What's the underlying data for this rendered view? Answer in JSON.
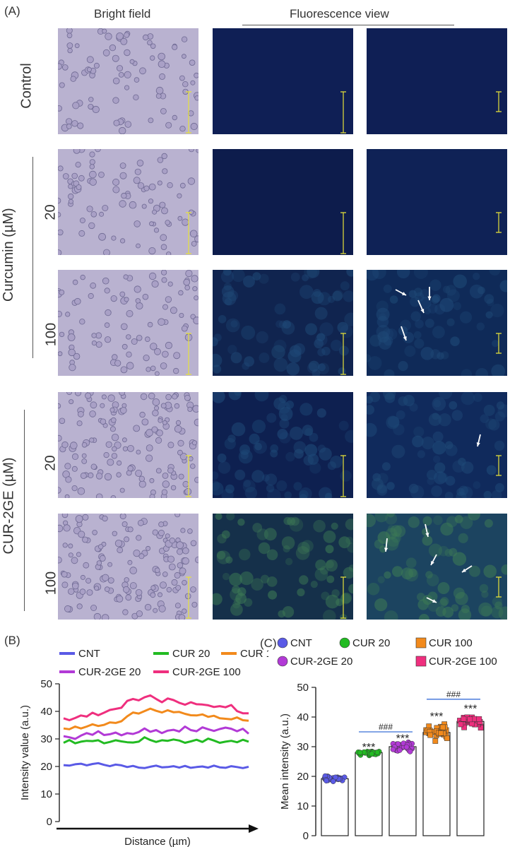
{
  "panel_a": {
    "label": "(A)",
    "col_headers": {
      "bright": "Bright field",
      "fluor": "Fluorescence view"
    },
    "row_labels": {
      "control": "Control",
      "curcumin": "Curcumin (µM)",
      "cur2ge": "CUR-2GE (µM)"
    },
    "doses": [
      "20",
      "100",
      "20",
      "100"
    ]
  },
  "panel_b": {
    "label": "(B)"
  },
  "panel_c": {
    "label": "(C)"
  },
  "chart_data": [
    {
      "type": "line",
      "ylabel": "Intensity value (a.u.)",
      "xlabel": "Distance (µm)",
      "ylim": [
        0,
        50
      ],
      "yticks": [
        0,
        10,
        20,
        30,
        40,
        50
      ],
      "legend": [
        "CNT",
        "CUR 20",
        "CUR 100",
        "CUR-2GE 20",
        "CUR-2GE 100"
      ],
      "series": [
        {
          "name": "CNT",
          "color": "#5a5ae6",
          "values": [
            20.5,
            20.3,
            20.8,
            21.0,
            20.4,
            20.9,
            21.2,
            20.6,
            20.1,
            20.7,
            20.4,
            19.8,
            20.2,
            19.6,
            19.4,
            19.9,
            20.3,
            19.7,
            19.8,
            20.1,
            19.6,
            20.2,
            19.5,
            19.8,
            20.0,
            19.6,
            20.3,
            19.7,
            19.5,
            20.1,
            19.8,
            19.4,
            19.9
          ]
        },
        {
          "name": "CUR 20",
          "color": "#22bb22",
          "values": [
            28.6,
            29.6,
            28.4,
            29.0,
            29.3,
            29.2,
            29.5,
            28.4,
            28.9,
            29.5,
            29.1,
            28.8,
            28.7,
            29.0,
            30.6,
            29.6,
            28.9,
            29.5,
            29.3,
            29.8,
            29.4,
            28.6,
            29.1,
            29.7,
            28.9,
            30.1,
            29.4,
            28.6,
            29.0,
            29.3,
            28.8,
            29.7,
            29.0
          ]
        },
        {
          "name": "CUR 100",
          "color": "#f28a1c",
          "values": [
            33.8,
            33.5,
            34.5,
            33.8,
            34.5,
            35.3,
            34.7,
            35.1,
            36.0,
            35.8,
            36.4,
            38.2,
            39.6,
            39.2,
            40.1,
            41.0,
            40.2,
            39.6,
            40.4,
            39.7,
            39.8,
            39.1,
            38.6,
            38.5,
            38.9,
            38.0,
            38.4,
            37.5,
            37.3,
            37.1,
            37.8,
            36.8,
            36.6
          ]
        },
        {
          "name": "CUR-2GE 20",
          "color": "#b23ad6",
          "values": [
            31.0,
            30.6,
            30.0,
            31.2,
            32.1,
            31.5,
            32.8,
            31.4,
            31.7,
            32.3,
            31.3,
            32.1,
            31.8,
            32.5,
            33.8,
            32.6,
            33.2,
            32.1,
            33.0,
            33.3,
            32.7,
            34.5,
            33.2,
            32.8,
            34.2,
            33.5,
            32.9,
            33.6,
            34.1,
            33.7,
            32.8,
            33.7,
            31.9
          ]
        },
        {
          "name": "CUR-2GE 100",
          "color": "#ef2f7e",
          "values": [
            37.5,
            36.8,
            37.6,
            38.5,
            38.1,
            39.5,
            38.6,
            39.5,
            40.5,
            40.9,
            41.3,
            43.8,
            44.5,
            44.0,
            45.1,
            45.8,
            44.5,
            43.3,
            44.7,
            44.1,
            43.1,
            42.4,
            43.3,
            42.6,
            42.5,
            42.2,
            41.6,
            41.9,
            41.5,
            42.3,
            40.1,
            39.3,
            39.3
          ]
        }
      ]
    },
    {
      "type": "bar",
      "ylabel": "Mean intensity (a.u.)",
      "ylim": [
        0,
        50
      ],
      "yticks": [
        0,
        10,
        20,
        30,
        40,
        50
      ],
      "categories": [
        "CNT",
        "CUR 20",
        "CUR-2GE 20",
        "CUR 100",
        "CUR-2GE 100"
      ],
      "values": [
        19.2,
        28.0,
        30.0,
        34.8,
        38.5
      ],
      "colors": [
        "#5a5ae6",
        "#22bb22",
        "#b23ad6",
        "#f28a1c",
        "#ef2f7e"
      ],
      "markers": [
        "circle",
        "circle",
        "circle",
        "square",
        "square"
      ],
      "significance": [
        "",
        "***",
        "***",
        "***",
        "***"
      ],
      "brackets": [
        {
          "from": 1,
          "to": 2,
          "label": "###"
        },
        {
          "from": 3,
          "to": 4,
          "label": "###"
        }
      ],
      "legend": [
        "CNT",
        "CUR 20",
        "CUR 100",
        "CUR-2GE 20",
        "CUR-2GE 100"
      ]
    }
  ]
}
